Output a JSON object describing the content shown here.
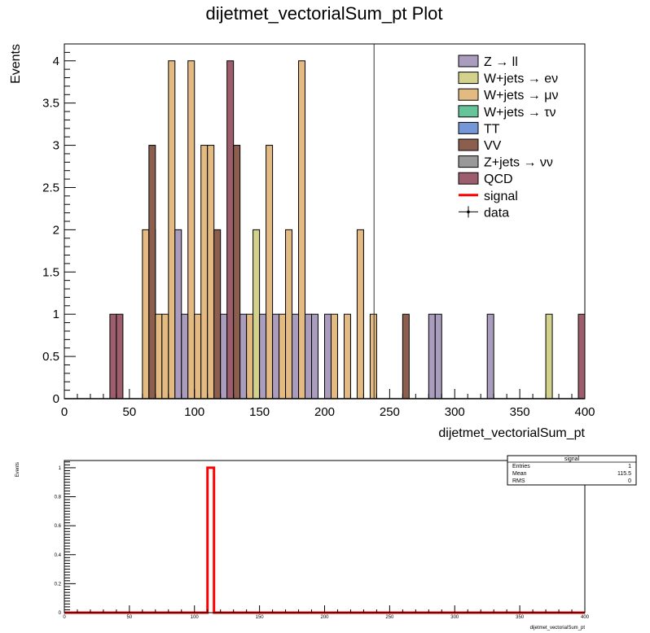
{
  "colors": {
    "Z → ll": "#a99cbc",
    "W+jets → eν": "#d2d28c",
    "W+jets → μν": "#e3bb82",
    "W+jets → τν": "#66c49b",
    "TT": "#7597d8",
    "VV": "#8b5e4e",
    "Z+jets → νν": "#999999",
    "QCD": "#9c5e6c",
    "signal": "#ff0000",
    "data": "#000000"
  },
  "chart_data": [
    {
      "type": "bar",
      "subtype": "stacked-histogram",
      "title": "dijetmet_vectorialSum_pt Plot",
      "xlabel": "dijetmet_vectorialSum_pt",
      "ylabel": "Events",
      "xlim": [
        0,
        400
      ],
      "ylim": [
        0,
        4.2
      ],
      "bin_width": 5,
      "xticks": [
        "0",
        "50",
        "100",
        "150",
        "200",
        "250",
        "300",
        "350",
        "400"
      ],
      "yticks": [
        "0",
        "0.5",
        "1",
        "1.5",
        "2",
        "2.5",
        "3",
        "3.5",
        "4"
      ],
      "legend_position": "top-right",
      "legend": [
        "Z → ll",
        "W+jets → eν",
        "W+jets → μν",
        "W+jets → τν",
        "TT",
        "VV",
        "Z+jets → νν",
        "QCD",
        "signal",
        "data"
      ],
      "vertical_line_x": 238,
      "bins": [
        {
          "x0": 35,
          "stack": [
            {
              "p": "QCD",
              "v": 1
            }
          ]
        },
        {
          "x0": 40,
          "stack": [
            {
              "p": "QCD",
              "v": 1
            }
          ]
        },
        {
          "x0": 60,
          "stack": [
            {
              "p": "W+jets → μν",
              "v": 2
            }
          ]
        },
        {
          "x0": 65,
          "stack": [
            {
              "p": "QCD",
              "v": 2
            }
          ]
        },
        {
          "x0": 65,
          "stack": [
            {
              "p": "VV",
              "v": 3
            }
          ]
        },
        {
          "x0": 70,
          "stack": [
            {
              "p": "W+jets → μν",
              "v": 1
            }
          ]
        },
        {
          "x0": 75,
          "stack": [
            {
              "p": "W+jets → μν",
              "v": 1
            }
          ]
        },
        {
          "x0": 80,
          "stack": [
            {
              "p": "W+jets → μν",
              "v": 4
            }
          ]
        },
        {
          "x0": 85,
          "stack": [
            {
              "p": "Z → ll",
              "v": 2
            }
          ]
        },
        {
          "x0": 90,
          "stack": [
            {
              "p": "Z → ll",
              "v": 1
            }
          ]
        },
        {
          "x0": 95,
          "stack": [
            {
              "p": "W+jets → μν",
              "v": 4
            }
          ]
        },
        {
          "x0": 100,
          "stack": [
            {
              "p": "W+jets → μν",
              "v": 1
            }
          ]
        },
        {
          "x0": 105,
          "stack": [
            {
              "p": "W+jets → μν",
              "v": 3
            }
          ]
        },
        {
          "x0": 110,
          "stack": [
            {
              "p": "W+jets → μν",
              "v": 3
            }
          ]
        },
        {
          "x0": 115,
          "stack": [
            {
              "p": "VV",
              "v": 2
            }
          ]
        },
        {
          "x0": 120,
          "stack": [
            {
              "p": "Z → ll",
              "v": 1
            }
          ]
        },
        {
          "x0": 125,
          "stack": [
            {
              "p": "QCD",
              "v": 4
            }
          ]
        },
        {
          "x0": 130,
          "stack": [
            {
              "p": "VV",
              "v": 3
            }
          ]
        },
        {
          "x0": 135,
          "stack": [
            {
              "p": "Z → ll",
              "v": 1
            }
          ]
        },
        {
          "x0": 140,
          "stack": [
            {
              "p": "W+jets → μν",
              "v": 1
            }
          ]
        },
        {
          "x0": 145,
          "stack": [
            {
              "p": "W+jets → eν",
              "v": 2
            }
          ]
        },
        {
          "x0": 150,
          "stack": [
            {
              "p": "Z → ll",
              "v": 1
            }
          ]
        },
        {
          "x0": 155,
          "stack": [
            {
              "p": "W+jets → μν",
              "v": 3
            }
          ]
        },
        {
          "x0": 160,
          "stack": [
            {
              "p": "Z → ll",
              "v": 1
            }
          ]
        },
        {
          "x0": 165,
          "stack": [
            {
              "p": "W+jets → μν",
              "v": 1
            }
          ]
        },
        {
          "x0": 170,
          "stack": [
            {
              "p": "W+jets → μν",
              "v": 2
            }
          ]
        },
        {
          "x0": 175,
          "stack": [
            {
              "p": "Z → ll",
              "v": 1
            }
          ]
        },
        {
          "x0": 180,
          "stack": [
            {
              "p": "W+jets → μν",
              "v": 4
            }
          ]
        },
        {
          "x0": 185,
          "stack": [
            {
              "p": "Z → ll",
              "v": 1
            }
          ]
        },
        {
          "x0": 190,
          "stack": [
            {
              "p": "Z → ll",
              "v": 1
            }
          ]
        },
        {
          "x0": 200,
          "stack": [
            {
              "p": "Z → ll",
              "v": 1
            }
          ]
        },
        {
          "x0": 205,
          "stack": [
            {
              "p": "W+jets → μν",
              "v": 1
            }
          ]
        },
        {
          "x0": 215,
          "stack": [
            {
              "p": "W+jets → μν",
              "v": 1
            }
          ]
        },
        {
          "x0": 225,
          "stack": [
            {
              "p": "W+jets → μν",
              "v": 2
            }
          ]
        },
        {
          "x0": 235,
          "stack": [
            {
              "p": "W+jets → μν",
              "v": 1
            }
          ]
        },
        {
          "x0": 260,
          "stack": [
            {
              "p": "VV",
              "v": 1
            }
          ]
        },
        {
          "x0": 280,
          "stack": [
            {
              "p": "Z → ll",
              "v": 1
            }
          ]
        },
        {
          "x0": 285,
          "stack": [
            {
              "p": "Z → ll",
              "v": 1
            }
          ]
        },
        {
          "x0": 325,
          "stack": [
            {
              "p": "Z → ll",
              "v": 1
            }
          ]
        },
        {
          "x0": 370,
          "stack": [
            {
              "p": "W+jets → eν",
              "v": 1
            }
          ]
        },
        {
          "x0": 395,
          "stack": [
            {
              "p": "QCD",
              "v": 1
            }
          ]
        }
      ]
    },
    {
      "type": "line",
      "subtype": "step-histogram",
      "name": "signal",
      "xlabel": "dijetmet_vectorialSum_pt",
      "ylabel": "Events",
      "xlim": [
        0,
        400
      ],
      "ylim": [
        0,
        1.05
      ],
      "xticks": [
        "0",
        "50",
        "100",
        "150",
        "200",
        "250",
        "300",
        "350",
        "400"
      ],
      "yticks": [
        "0",
        "0.2",
        "0.4",
        "0.6",
        "0.8",
        "1"
      ],
      "bin_width": 5,
      "signal_bins": [
        {
          "x0": 110,
          "v": 1
        }
      ],
      "stats_box": {
        "title": "signal",
        "rows": [
          {
            "label": "Entries",
            "value": "1"
          },
          {
            "label": "Mean",
            "value": "115.5"
          },
          {
            "label": "RMS",
            "value": "0"
          }
        ]
      }
    }
  ]
}
